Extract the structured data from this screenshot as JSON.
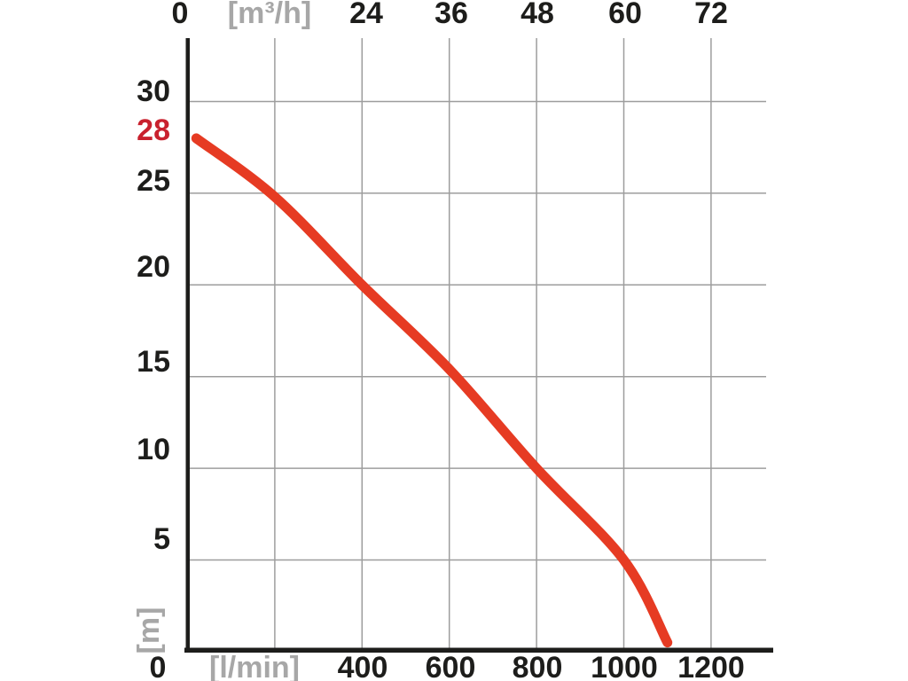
{
  "chart_data": {
    "type": "line",
    "top_axis": {
      "unit": "[m³/h]",
      "labels": [
        "0",
        "[m³/h]",
        "24",
        "36",
        "48",
        "60",
        "72"
      ],
      "values": [
        0,
        12,
        24,
        36,
        48,
        60,
        72
      ]
    },
    "bottom_axis": {
      "unit": "[l/min]",
      "labels": [
        "0",
        "[l/min]",
        "400",
        "600",
        "800",
        "1000",
        "1200"
      ],
      "values": [
        0,
        200,
        400,
        600,
        800,
        1000,
        1200
      ]
    },
    "left_axis": {
      "unit": "[m]",
      "labels": [
        "30",
        "28",
        "25",
        "20",
        "15",
        "10",
        "5"
      ],
      "values": [
        30,
        28,
        25,
        20,
        15,
        10,
        5
      ],
      "highlight_label": "28",
      "range": [
        0,
        30
      ]
    },
    "series": [
      {
        "name": "head-vs-flow-curve",
        "x_unit": "l/min",
        "y_unit": "m",
        "points": [
          [
            20,
            28
          ],
          [
            200,
            24.8
          ],
          [
            400,
            20
          ],
          [
            600,
            15.4
          ],
          [
            800,
            10
          ],
          [
            1000,
            5
          ],
          [
            1100,
            0.5
          ]
        ]
      }
    ],
    "max_head_m": 28,
    "max_flow_l_min": 1100,
    "grid": "on",
    "legend": "none",
    "colors": {
      "curve": "#e63b23",
      "highlight": "#c9212e",
      "grid": "#9d9d9d",
      "axis": "#1d1d1b",
      "text": "#1d1d1b",
      "unit_text": "#a7a7a7"
    }
  }
}
